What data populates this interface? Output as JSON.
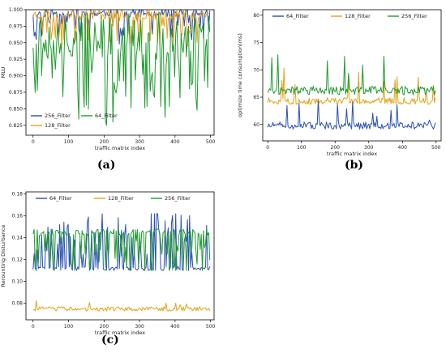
{
  "panel_labels": [
    "(a)",
    "(b)",
    "(c)"
  ],
  "colors": {
    "blue": "#2a4fb6",
    "orange": "#e3a21a",
    "green": "#1e9a2e"
  },
  "chart_data": [
    {
      "type": "line",
      "xlabel": "traffic matrix index",
      "ylabel": "MLU",
      "xlim": [
        -20,
        510
      ],
      "ylim": [
        0.81,
        1.0
      ],
      "xticks": [
        0,
        100,
        200,
        300,
        400,
        500
      ],
      "yticks": [
        0.825,
        0.85,
        0.875,
        0.9,
        0.925,
        0.95,
        0.975,
        1.0
      ],
      "ytick_labels": [
        "0.825",
        "0.850",
        "0.875",
        "0.900",
        "0.925",
        "0.950",
        "0.975",
        "1.000"
      ],
      "legend": "bottom-left",
      "series": [
        {
          "name": "256_Filter",
          "color": "#2a4fb6",
          "base": 0.995,
          "spread": 0.012,
          "prob": 0.25,
          "drop": 0.035,
          "lo": 0.93,
          "hi": 1.0,
          "seed": 11
        },
        {
          "name": "128_Filter",
          "color": "#e3a21a",
          "base": 0.993,
          "spread": 0.015,
          "prob": 0.2,
          "drop": 0.04,
          "lo": 0.94,
          "hi": 1.0,
          "seed": 23
        },
        {
          "name": "64_Filter",
          "color": "#1e9a2e",
          "base": 0.96,
          "spread": 0.07,
          "prob": 0.35,
          "drop": 0.09,
          "lo": 0.825,
          "hi": 1.0,
          "seed": 37
        }
      ],
      "legend_order": [
        0,
        1,
        2
      ]
    },
    {
      "type": "line",
      "xlabel": "traffic matrix index",
      "ylabel": "optimize time consumption(ms)",
      "xlim": [
        -15,
        515
      ],
      "ylim": [
        57,
        81
      ],
      "xticks": [
        0,
        100,
        200,
        300,
        400,
        500
      ],
      "yticks": [
        60,
        65,
        70,
        75,
        80
      ],
      "ytick_labels": [
        "60",
        "65",
        "70",
        "75",
        "80"
      ],
      "legend": "top",
      "series": [
        {
          "name": "64_Filter",
          "color": "#2a4fb6",
          "base": 59.8,
          "spread": 1.3,
          "prob": 0.04,
          "drop": -4.0,
          "lo": 58.2,
          "hi": 66,
          "seed": 51
        },
        {
          "name": "128_Filter",
          "color": "#e3a21a",
          "base": 64.3,
          "spread": 1.3,
          "prob": 0.05,
          "drop": -6.0,
          "lo": 62.5,
          "hi": 72,
          "seed": 63
        },
        {
          "name": "256_Filter",
          "color": "#1e9a2e",
          "base": 66.2,
          "spread": 1.6,
          "prob": 0.05,
          "drop": -6.0,
          "lo": 64.5,
          "hi": 80.5,
          "seed": 77
        }
      ]
    },
    {
      "type": "line",
      "xlabel": "traffic matrix index",
      "ylabel": "Rerounting Disturbance",
      "xlim": [
        -20,
        510
      ],
      "ylim": [
        0.065,
        0.182
      ],
      "xticks": [
        0,
        100,
        200,
        300,
        400,
        500
      ],
      "yticks": [
        0.08,
        0.1,
        0.12,
        0.14,
        0.16,
        0.18
      ],
      "ytick_labels": [
        "0.08",
        "0.10",
        "0.12",
        "0.14",
        "0.16",
        "0.18"
      ],
      "legend": "top",
      "series": [
        {
          "name": "64_Filter",
          "color": "#2a4fb6",
          "base": 0.112,
          "spread": 0.004,
          "prob": 0.35,
          "drop": -0.045,
          "lo": 0.108,
          "hi": 0.162,
          "seed": 91
        },
        {
          "name": "128_Filter",
          "color": "#e3a21a",
          "base": 0.075,
          "spread": 0.004,
          "prob": 0.05,
          "drop": -0.006,
          "lo": 0.072,
          "hi": 0.084,
          "seed": 103
        },
        {
          "name": "256_Filter",
          "color": "#1e9a2e",
          "base": 0.145,
          "spread": 0.006,
          "prob": 0.3,
          "drop": 0.032,
          "lo": 0.11,
          "hi": 0.172,
          "seed": 117
        }
      ]
    }
  ]
}
